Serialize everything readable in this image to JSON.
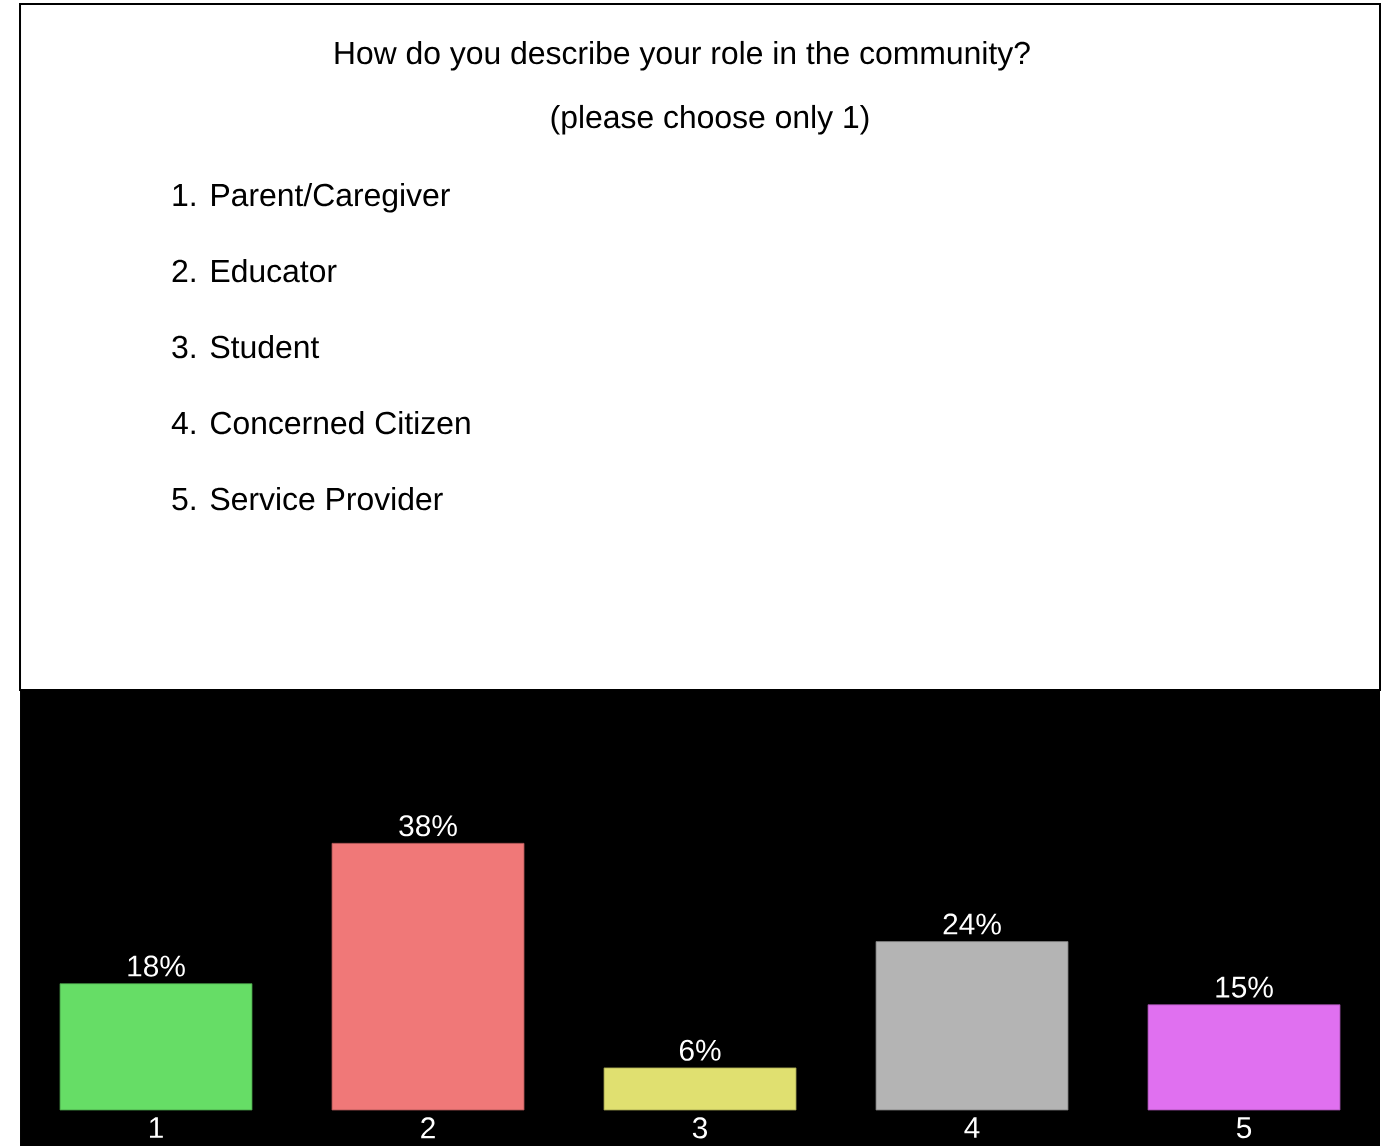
{
  "chart_data": {
    "type": "bar",
    "title": "How do you describe your role in the community?",
    "subtitle": "(please choose only 1)",
    "annotations": [
      "1.  Parent/Caregiver",
      "2.  Educator",
      "3.  Student",
      "4.  Concerned Citizen",
      "5.  Service Provider"
    ],
    "categories": [
      "1",
      "2",
      "3",
      "4",
      "5"
    ],
    "values": [
      18,
      38,
      6,
      24,
      15
    ],
    "value_labels": [
      "18%",
      "38%",
      "6%",
      "24%",
      "15%"
    ],
    "colors": [
      "#66dd66",
      "#f07878",
      "#e0e070",
      "#b4b4b4",
      "#e070f0"
    ]
  }
}
